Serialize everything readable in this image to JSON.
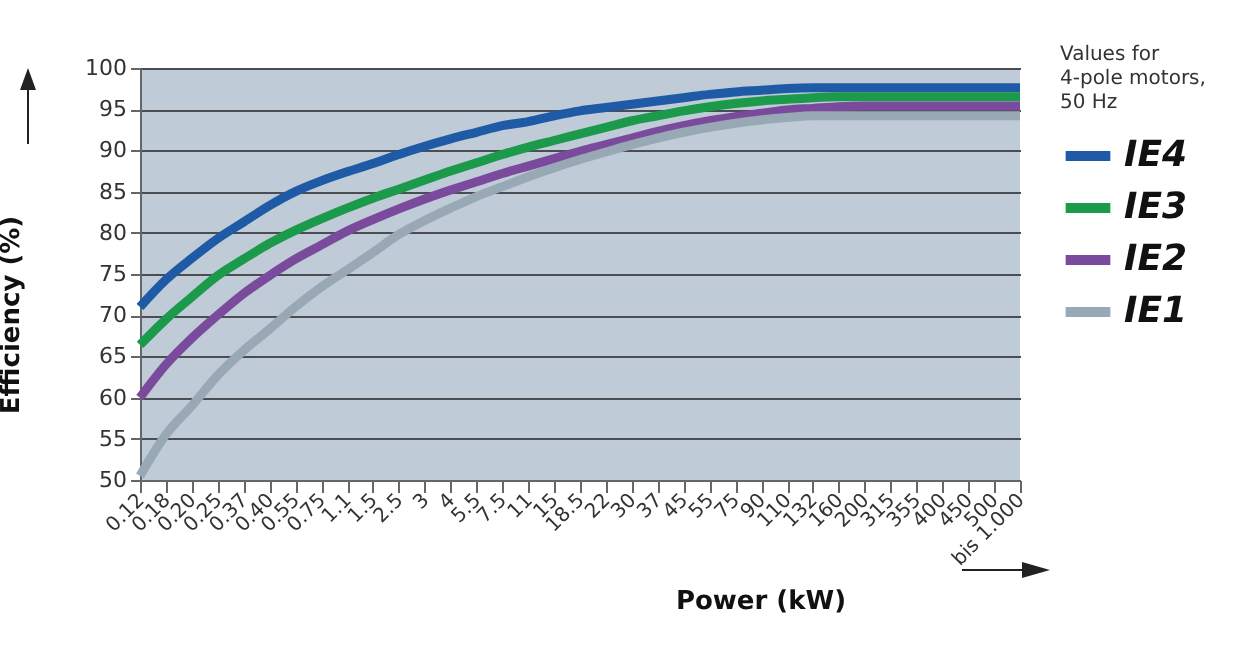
{
  "chart_data": {
    "type": "line",
    "xlabel": "Power (kW)",
    "ylabel": "Efficiency (%)",
    "legend_title": "Values for 4-pole motors, 50 Hz",
    "categories": [
      "0.12",
      "0.18",
      "0.20",
      "0.25",
      "0.37",
      "0.40",
      "0.55",
      "0.75",
      "1.1",
      "1.5",
      "2.5",
      "3",
      "4",
      "5.5",
      "7.5",
      "11",
      "15",
      "18.5",
      "22",
      "30",
      "37",
      "45",
      "55",
      "75",
      "90",
      "110",
      "132",
      "160",
      "200",
      "315",
      "355",
      "400",
      "450",
      "500",
      "bis 1.000"
    ],
    "series": [
      {
        "name": "IE4",
        "color": "#1f5aa6",
        "values": [
          71,
          74.3,
          76.9,
          79.3,
          81.3,
          83.3,
          85,
          86.3,
          87.4,
          88.4,
          89.5,
          90.5,
          91.4,
          92.2,
          93,
          93.5,
          94.2,
          94.8,
          95.2,
          95.6,
          96,
          96.4,
          96.8,
          97.1,
          97.3,
          97.5,
          97.6,
          97.6,
          97.6,
          97.6,
          97.6,
          97.6,
          97.6,
          97.6,
          97.6
        ]
      },
      {
        "name": "IE3",
        "color": "#1a9a4a",
        "values": [
          66.4,
          69.5,
          72.2,
          74.8,
          76.8,
          78.7,
          80.3,
          81.7,
          83,
          84.2,
          85.3,
          86.4,
          87.5,
          88.5,
          89.5,
          90.4,
          91.2,
          92,
          92.8,
          93.6,
          94.2,
          94.8,
          95.3,
          95.7,
          96,
          96.2,
          96.4,
          96.5,
          96.5,
          96.5,
          96.5,
          96.5,
          96.5,
          96.5,
          96.5
        ]
      },
      {
        "name": "IE2",
        "color": "#7a4a9c",
        "values": [
          60,
          64,
          67.2,
          70,
          72.6,
          74.8,
          76.8,
          78.5,
          80.2,
          81.6,
          82.9,
          84.1,
          85.2,
          86.2,
          87.2,
          88.1,
          89,
          89.9,
          90.7,
          91.5,
          92.3,
          93,
          93.6,
          94.1,
          94.5,
          94.9,
          95.1,
          95.3,
          95.4,
          95.4,
          95.4,
          95.4,
          95.4,
          95.4,
          95.4
        ]
      },
      {
        "name": "IE1",
        "color": "#98a8b4",
        "values": [
          50.5,
          55.5,
          59,
          62.7,
          65.7,
          68.3,
          71,
          73.4,
          75.5,
          77.6,
          79.8,
          81.5,
          83,
          84.4,
          85.6,
          86.8,
          87.9,
          88.9,
          89.8,
          90.7,
          91.5,
          92.2,
          92.8,
          93.3,
          93.7,
          94,
          94.2,
          94.2,
          94.2,
          94.2,
          94.2,
          94.2,
          94.2,
          94.2,
          94.2
        ]
      }
    ],
    "ylim": [
      50,
      100
    ],
    "yticks": [
      50,
      55,
      60,
      65,
      70,
      75,
      80,
      85,
      90,
      95,
      100
    ],
    "grid": "y",
    "legend": "top right",
    "marker": "none",
    "line_style": "solid"
  }
}
